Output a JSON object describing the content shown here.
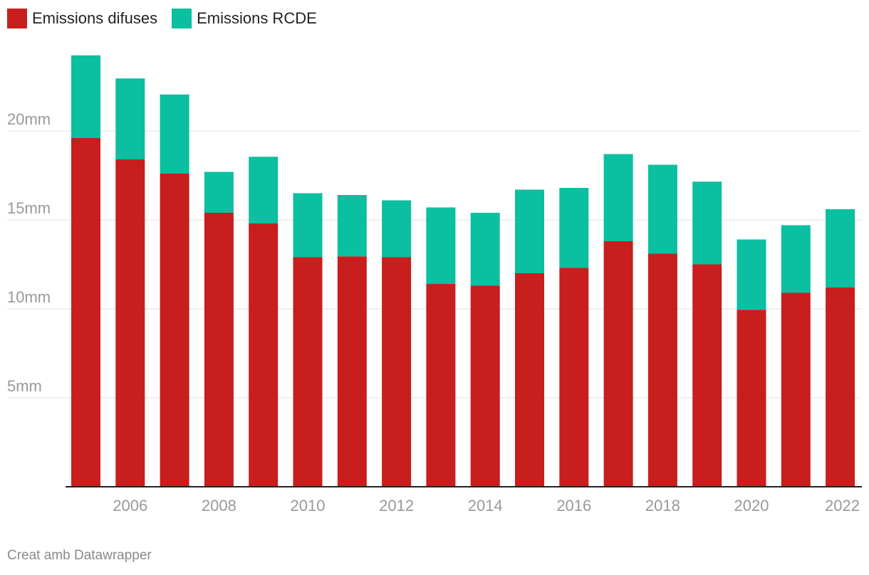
{
  "legend": [
    {
      "label": "Emissions difuses",
      "color": "#c81e1e"
    },
    {
      "label": "Emissions RCDE",
      "color": "#0bbfa1"
    }
  ],
  "footer": "Creat amb Datawrapper",
  "chart_data": {
    "type": "bar",
    "stacked": true,
    "title": "",
    "xlabel": "",
    "ylabel": "",
    "ylim": [
      0,
      25
    ],
    "y_ticks": [
      {
        "value": 5,
        "label": "5mm"
      },
      {
        "value": 10,
        "label": "10mm"
      },
      {
        "value": 15,
        "label": "15mm"
      },
      {
        "value": 20,
        "label": "20mm"
      }
    ],
    "categories": [
      2005,
      2006,
      2007,
      2008,
      2009,
      2010,
      2011,
      2012,
      2013,
      2014,
      2015,
      2016,
      2017,
      2018,
      2019,
      2020,
      2021,
      2022
    ],
    "x_tick_labels": [
      "2006",
      "2008",
      "2010",
      "2012",
      "2014",
      "2016",
      "2018",
      "2020",
      "2022"
    ],
    "series": [
      {
        "name": "Emissions difuses",
        "color": "#c81e1e",
        "values": [
          19.6,
          18.4,
          17.6,
          15.4,
          14.8,
          12.9,
          12.95,
          12.9,
          11.4,
          11.3,
          12.0,
          12.3,
          13.8,
          13.1,
          12.5,
          9.95,
          10.9,
          11.2
        ]
      },
      {
        "name": "Emissions RCDE",
        "color": "#0bbfa1",
        "values": [
          4.65,
          4.55,
          4.45,
          2.3,
          3.75,
          3.6,
          3.45,
          3.2,
          4.3,
          4.1,
          4.7,
          4.5,
          4.9,
          5.0,
          4.65,
          3.95,
          3.8,
          4.4
        ]
      }
    ]
  }
}
